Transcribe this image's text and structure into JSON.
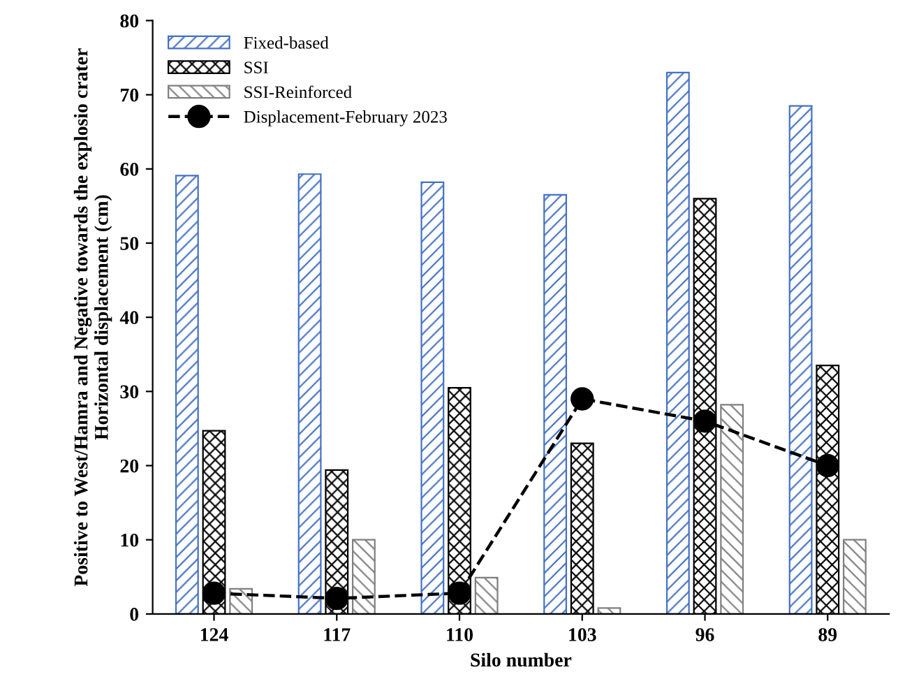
{
  "chart_data": {
    "type": "bar",
    "xlabel": "Silo number",
    "ylabel": "Positive to West/Hamra and Negative towards the explosio crater\nHorizontal displacement (cm)",
    "categories": [
      "124",
      "117",
      "110",
      "103",
      "96",
      "89"
    ],
    "series": [
      {
        "name": "Fixed-based",
        "color": "#4472c4",
        "values": [
          59.1,
          59.3,
          58.2,
          56.5,
          73.0,
          68.5
        ]
      },
      {
        "name": "SSI",
        "color": "#000000",
        "values": [
          24.7,
          19.4,
          30.5,
          23.0,
          56.0,
          33.5
        ]
      },
      {
        "name": "SSI-Reinforced",
        "color": "#808080",
        "values": [
          3.4,
          10.0,
          4.9,
          0.8,
          28.2,
          10.0
        ]
      },
      {
        "name": "Displacement-February 2023",
        "type": "line",
        "color": "#000000",
        "marker": "circle",
        "line_style": "dashed",
        "values": [
          2.8,
          2.1,
          2.8,
          29.0,
          26.0,
          20.0
        ]
      }
    ],
    "ylim": [
      0,
      80
    ],
    "yticks": [
      0,
      10,
      20,
      30,
      40,
      50,
      60,
      70,
      80
    ],
    "grid": false,
    "legend": "top left"
  }
}
